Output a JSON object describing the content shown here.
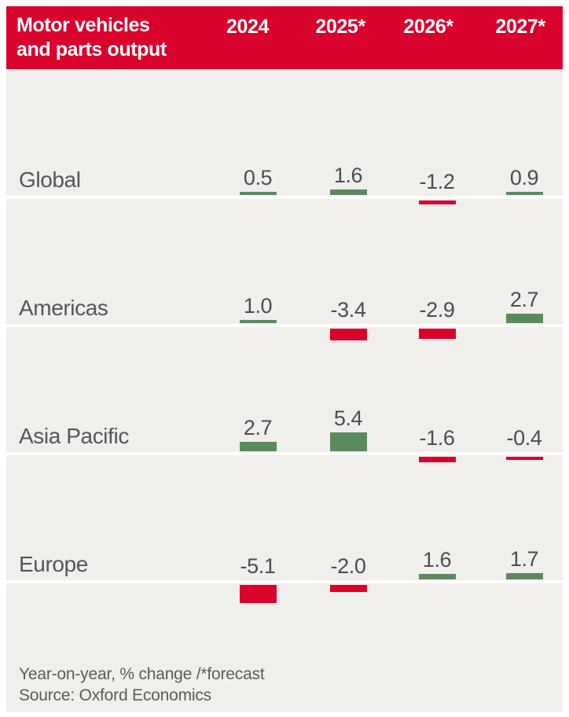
{
  "header": {
    "title_line1": "Motor vehicles",
    "title_line2": "and parts output",
    "years": [
      "2024",
      "2025*",
      "2026*",
      "2027*"
    ],
    "background": "#d9022c",
    "text_color": "#ffffff"
  },
  "footer": {
    "note": "Year-on-year, % change /*forecast",
    "source": "Source: Oxford Economics"
  },
  "colors": {
    "positive_bar": "#5a8a5e",
    "negative_bar": "#d9022c",
    "panel_background": "#f1efeb",
    "page_background": "#ffffff",
    "region_label_text": "#54565c",
    "value_text": "#4b4d52",
    "footer_text": "#5d5b55"
  },
  "chart_data": {
    "type": "bar",
    "title": "Motor vehicles and parts output",
    "subtitle": "Year-on-year, % change /*forecast",
    "source": "Source: Oxford Economics",
    "categories": [
      "2024",
      "2025*",
      "2026*",
      "2027*"
    ],
    "series": [
      {
        "name": "Global",
        "values": [
          0.5,
          1.6,
          -1.2,
          0.9
        ]
      },
      {
        "name": "Americas",
        "values": [
          1.0,
          -3.4,
          -2.9,
          2.7
        ]
      },
      {
        "name": "Asia Pacific",
        "values": [
          2.7,
          5.4,
          -1.6,
          -0.4
        ]
      },
      {
        "name": "Europe",
        "values": [
          -5.1,
          -2.0,
          1.6,
          1.7
        ]
      }
    ],
    "ylabel": "% change year-on-year",
    "baseline": 0,
    "value_labels": true,
    "legend_position": "none",
    "grid": false,
    "positive_color": "#5a8a5e",
    "negative_color": "#d9022c"
  }
}
